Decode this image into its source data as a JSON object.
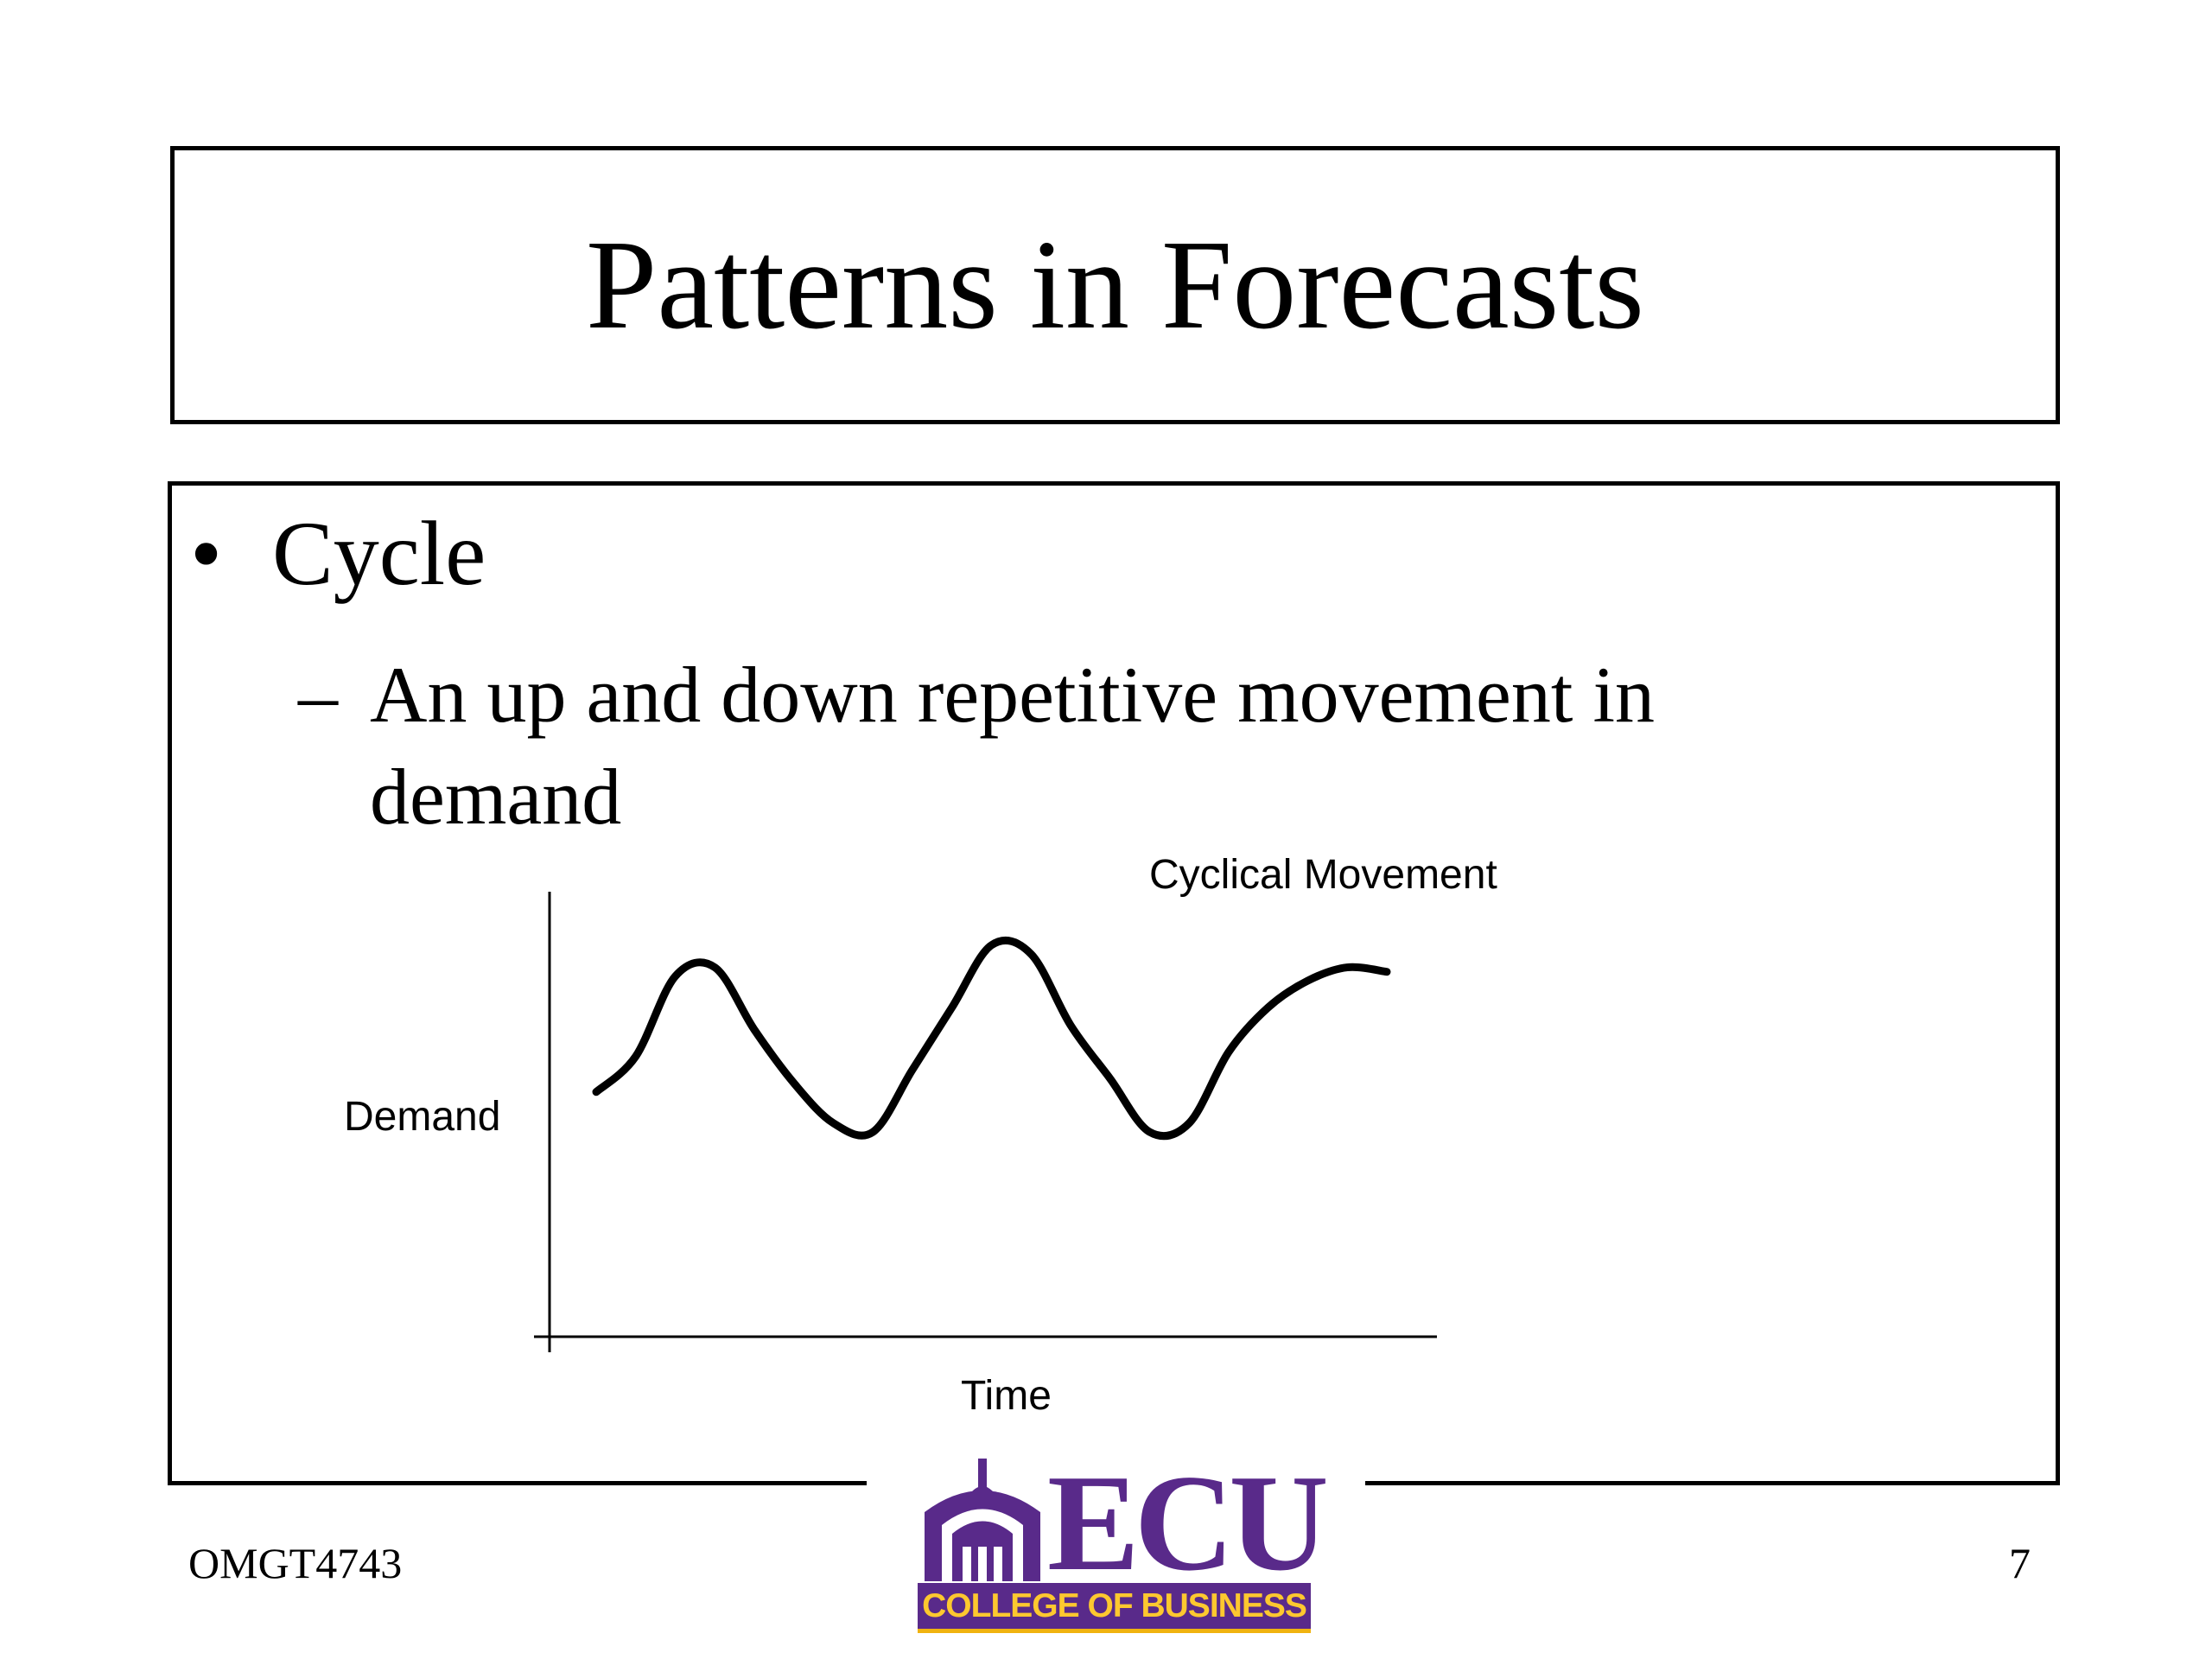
{
  "slide": {
    "title": "Patterns in Forecasts",
    "bullet": "Cycle",
    "bullet_marker": "•",
    "sub_bullet": "An up and down repetitive movement in demand",
    "sub_marker": "–"
  },
  "chart_data": {
    "type": "line",
    "title": "Cyclical Movement",
    "xlabel": "Time",
    "ylabel": "Demand",
    "description_shape": "hand-drawn wave",
    "x": [
      0,
      1,
      2,
      3,
      4,
      5,
      6,
      7,
      8,
      9,
      10,
      11,
      12,
      13,
      14,
      15,
      16,
      17,
      18,
      19,
      20
    ],
    "series": [
      {
        "values": [
          1.0,
          1.8,
          3.6,
          3.8,
          2.4,
          1.2,
          0.3,
          0.1,
          1.5,
          2.9,
          4.3,
          4.1,
          2.5,
          1.3,
          0.1,
          0.3,
          1.9,
          2.9,
          3.5,
          3.8,
          3.7
        ]
      }
    ],
    "ylim": [
      -4.5,
      5.5
    ],
    "grid": false
  },
  "footer": {
    "course": "OMGT4743",
    "page": "7"
  },
  "logo": {
    "wordmark": "ECU",
    "banner": "COLLEGE OF BUSINESS",
    "primary_color": "#592a8a",
    "gold_color": "#fdc82f"
  }
}
